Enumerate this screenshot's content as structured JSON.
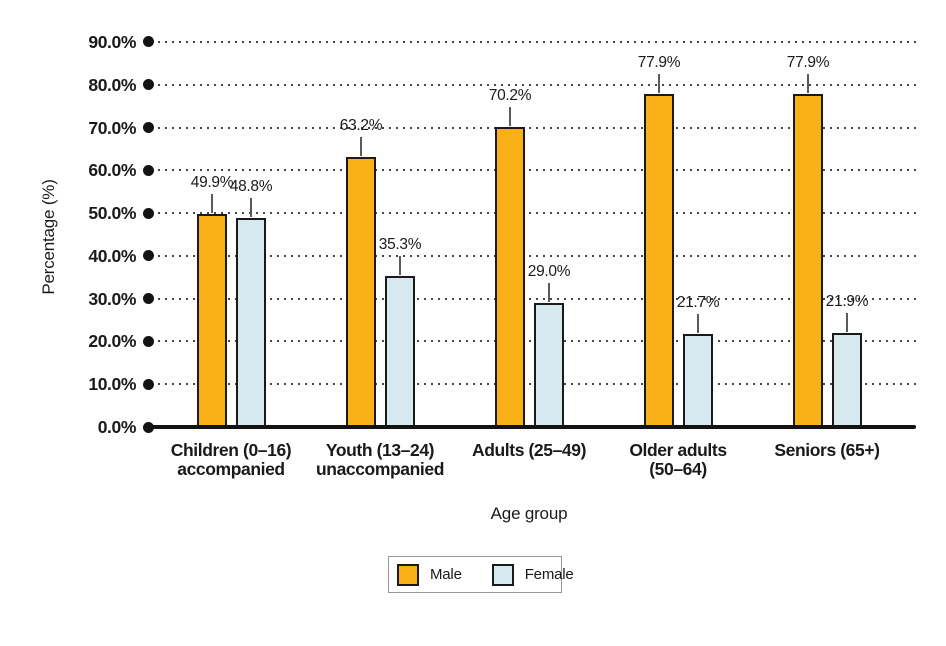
{
  "y_axis": {
    "label": "Percentage (%)",
    "ticks": [
      "0.0%",
      "10.0%",
      "20.0%",
      "30.0%",
      "40.0%",
      "50.0%",
      "60.0%",
      "70.0%",
      "80.0%",
      "90.0%"
    ]
  },
  "x_axis": {
    "label": "Age group"
  },
  "legend": {
    "items": [
      {
        "label": "Male",
        "color": "#F9B117"
      },
      {
        "label": "Female",
        "color": "#D6E9EF"
      }
    ]
  },
  "colors": {
    "male_bar": "#F9B117",
    "female_bar": "#D6E9EF",
    "bar_border": "#1a1a1a",
    "axis_line": "#131313",
    "grid_dots": "#454545",
    "text": "#1a1a1a"
  },
  "chart_data": {
    "type": "bar",
    "title": "",
    "xlabel": "Age group",
    "ylabel": "Percentage (%)",
    "ylim": [
      0,
      90
    ],
    "ytick_step": 10,
    "grid": "horizontal-dotted",
    "legend_position": "bottom-center",
    "categories": [
      "Children (0–16)\naccompanied",
      "Youth (13–24)\nunaccompanied",
      "Adults (25–49)",
      "Older adults\n(50–64)",
      "Seniors (65+)"
    ],
    "series": [
      {
        "name": "Male",
        "color": "#F9B117",
        "values": [
          49.9,
          63.2,
          70.2,
          77.9,
          77.9
        ],
        "labels": [
          "49.9%",
          "63.2%",
          "70.2%",
          "77.9%",
          "77.9%"
        ]
      },
      {
        "name": "Female",
        "color": "#D6E9EF",
        "values": [
          48.8,
          35.3,
          29.0,
          21.7,
          21.9
        ],
        "labels": [
          "48.8%",
          "35.3%",
          "29.0%",
          "21.7%",
          "21.9%"
        ]
      }
    ]
  }
}
